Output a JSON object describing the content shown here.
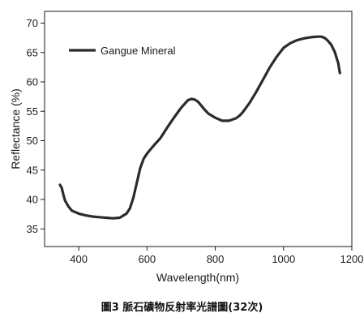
{
  "caption": "圖3 脈石礦物反射率光譜圖(32次)",
  "chart_data": {
    "type": "line",
    "xlabel": "Wavelength(nm)",
    "ylabel": "Reflectance (%)",
    "xlim": [
      300,
      1200
    ],
    "ylim": [
      32,
      72
    ],
    "xticks": [
      400,
      600,
      800,
      1000,
      1200
    ],
    "yticks": [
      35,
      40,
      45,
      50,
      55,
      60,
      65,
      70
    ],
    "legend_position": "top-left",
    "series": [
      {
        "name": "Gangue Mineral",
        "color": "#2b2b2b",
        "x": [
          345,
          350,
          355,
          360,
          370,
          380,
          400,
          420,
          440,
          460,
          480,
          500,
          520,
          540,
          550,
          560,
          570,
          580,
          590,
          600,
          610,
          620,
          640,
          660,
          680,
          700,
          720,
          730,
          740,
          750,
          760,
          770,
          780,
          800,
          820,
          840,
          860,
          870,
          880,
          900,
          920,
          940,
          960,
          980,
          1000,
          1020,
          1040,
          1060,
          1080,
          1100,
          1110,
          1120,
          1130,
          1140,
          1150,
          1160,
          1165
        ],
        "y": [
          42.5,
          42.0,
          40.8,
          39.8,
          38.8,
          38.1,
          37.6,
          37.3,
          37.1,
          37.0,
          36.9,
          36.8,
          36.9,
          37.6,
          38.5,
          40.3,
          42.8,
          45.3,
          46.9,
          47.8,
          48.5,
          49.2,
          50.5,
          52.3,
          54.0,
          55.6,
          56.9,
          57.1,
          57.0,
          56.6,
          55.9,
          55.2,
          54.6,
          53.9,
          53.4,
          53.4,
          53.8,
          54.2,
          54.8,
          56.4,
          58.3,
          60.4,
          62.5,
          64.3,
          65.8,
          66.6,
          67.1,
          67.4,
          67.6,
          67.7,
          67.7,
          67.5,
          67.0,
          66.3,
          65.1,
          63.2,
          61.5
        ]
      }
    ]
  }
}
